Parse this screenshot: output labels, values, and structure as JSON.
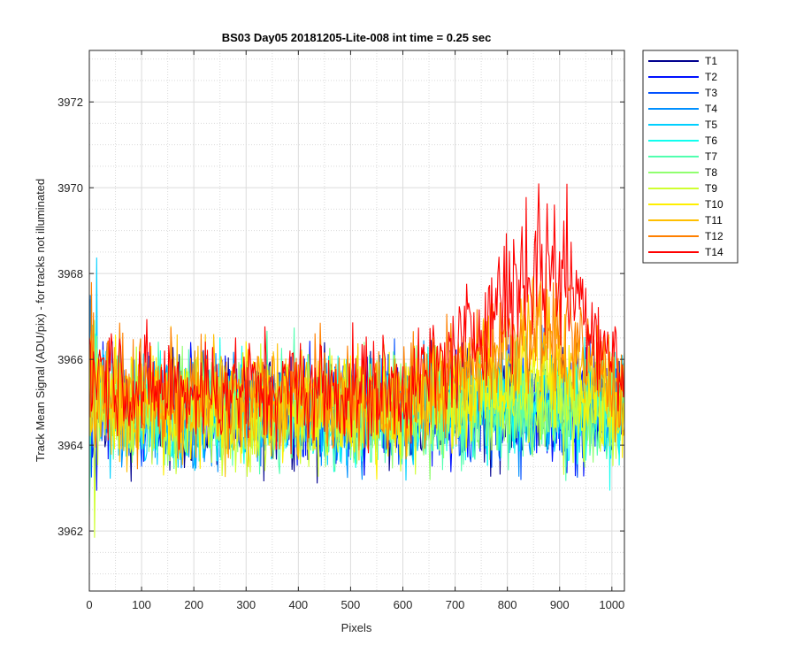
{
  "chart_data": {
    "type": "line",
    "title": "BS03 Day05 20181205-Lite-008 int time = 0.25 sec",
    "xlabel": "Pixels",
    "ylabel": "Track Mean Signal (ADU/pix) - for tracks not illuminated",
    "xlim": [
      0,
      1024
    ],
    "ylim": [
      3960.6,
      3973.2
    ],
    "xticks": [
      0,
      100,
      200,
      300,
      400,
      500,
      600,
      700,
      800,
      900,
      1000
    ],
    "yticks": [
      3962,
      3964,
      3966,
      3968,
      3970,
      3972
    ],
    "grid": true,
    "minor_grid": true,
    "legend_position": "outside-top-right",
    "series_profile": {
      "x": [
        0,
        100,
        200,
        300,
        400,
        500,
        600,
        700,
        800,
        850,
        900,
        950,
        1024
      ],
      "T1": [
        3965.1,
        3964.8,
        3964.8,
        3964.8,
        3964.8,
        3964.8,
        3964.8,
        3964.9,
        3964.9,
        3964.9,
        3964.9,
        3964.9,
        3964.9
      ],
      "T2": [
        3965.1,
        3964.8,
        3964.8,
        3964.8,
        3964.8,
        3964.8,
        3964.8,
        3964.9,
        3964.9,
        3964.9,
        3964.9,
        3964.9,
        3964.9
      ],
      "T3": [
        3965.1,
        3964.8,
        3964.8,
        3964.8,
        3964.8,
        3964.8,
        3964.8,
        3964.9,
        3964.9,
        3964.9,
        3964.9,
        3964.9,
        3964.9
      ],
      "T4": [
        3965.1,
        3964.8,
        3964.8,
        3964.8,
        3964.8,
        3964.8,
        3964.8,
        3964.9,
        3964.9,
        3964.9,
        3964.9,
        3964.9,
        3964.9
      ],
      "T5": [
        3965.1,
        3964.8,
        3964.8,
        3964.8,
        3964.8,
        3964.8,
        3964.8,
        3964.9,
        3964.9,
        3964.9,
        3964.9,
        3964.9,
        3964.9
      ],
      "T6": [
        3965.1,
        3964.8,
        3964.8,
        3964.8,
        3964.8,
        3964.8,
        3964.8,
        3964.9,
        3964.9,
        3964.9,
        3964.9,
        3964.9,
        3964.9
      ],
      "T7": [
        3965.1,
        3964.8,
        3964.8,
        3964.8,
        3964.8,
        3964.8,
        3964.8,
        3964.9,
        3964.9,
        3964.9,
        3964.9,
        3964.9,
        3964.9
      ],
      "T8": [
        3965.1,
        3964.8,
        3964.8,
        3964.8,
        3964.8,
        3964.8,
        3964.8,
        3964.9,
        3964.9,
        3964.9,
        3964.9,
        3964.9,
        3964.9
      ],
      "T9": [
        3965.1,
        3964.8,
        3964.8,
        3964.8,
        3964.8,
        3964.8,
        3964.8,
        3965.0,
        3965.0,
        3965.0,
        3965.0,
        3965.0,
        3964.9
      ],
      "T10": [
        3965.2,
        3964.9,
        3964.9,
        3964.9,
        3964.9,
        3964.9,
        3964.9,
        3965.3,
        3965.6,
        3965.8,
        3965.6,
        3965.3,
        3965.0
      ],
      "T11": [
        3965.4,
        3965.0,
        3965.0,
        3965.0,
        3965.0,
        3965.0,
        3965.0,
        3965.6,
        3966.3,
        3966.5,
        3966.3,
        3965.8,
        3965.2
      ],
      "T12": [
        3965.6,
        3965.1,
        3965.1,
        3965.1,
        3965.1,
        3965.1,
        3965.1,
        3965.7,
        3966.5,
        3966.8,
        3966.6,
        3966.1,
        3965.3
      ],
      "T14": [
        3966.0,
        3965.3,
        3965.3,
        3965.3,
        3965.3,
        3965.3,
        3965.3,
        3966.1,
        3967.6,
        3968.3,
        3968.2,
        3967.2,
        3965.5
      ]
    },
    "noise_amplitude": 1.2,
    "series": [
      {
        "name": "T1",
        "color": "#00008F"
      },
      {
        "name": "T2",
        "color": "#0010FF"
      },
      {
        "name": "T3",
        "color": "#0050FF"
      },
      {
        "name": "T4",
        "color": "#0090FF"
      },
      {
        "name": "T5",
        "color": "#00D0FF"
      },
      {
        "name": "T6",
        "color": "#10FFEF"
      },
      {
        "name": "T7",
        "color": "#50FFAF"
      },
      {
        "name": "T8",
        "color": "#90FF6F"
      },
      {
        "name": "T9",
        "color": "#CFFF30"
      },
      {
        "name": "T10",
        "color": "#FFEF00"
      },
      {
        "name": "T11",
        "color": "#FFBF00"
      },
      {
        "name": "T12",
        "color": "#FF8000"
      },
      {
        "name": "T14",
        "color": "#FF0000"
      }
    ]
  }
}
